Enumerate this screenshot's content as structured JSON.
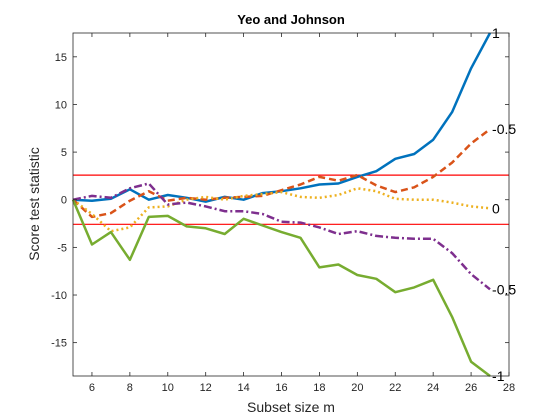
{
  "chart_data": {
    "type": "line",
    "title": "Yeo and Johnson",
    "xlabel": "Subset size m",
    "ylabel": "Score test statistic",
    "xlim": [
      5,
      28
    ],
    "ylim": [
      -18.5,
      17.5
    ],
    "xticks": [
      6,
      8,
      10,
      12,
      14,
      16,
      18,
      20,
      22,
      24,
      26,
      28
    ],
    "yticks": [
      -15,
      -10,
      -5,
      0,
      5,
      10,
      15
    ],
    "grid": false,
    "thresholds": [
      {
        "y": 2.58,
        "color": "#ff0000"
      },
      {
        "y": -2.58,
        "color": "#ff0000"
      }
    ],
    "x": [
      5,
      6,
      7,
      8,
      9,
      10,
      11,
      12,
      13,
      14,
      15,
      16,
      17,
      18,
      19,
      20,
      21,
      22,
      23,
      24,
      25,
      26,
      27
    ],
    "series": [
      {
        "label": "1",
        "color": "#0072bd",
        "style": "solid",
        "values": [
          0.0,
          -0.1,
          0.1,
          1.1,
          0.0,
          0.5,
          0.2,
          -0.2,
          0.3,
          0.0,
          0.7,
          0.9,
          1.2,
          1.6,
          1.7,
          2.4,
          3.0,
          4.3,
          4.8,
          6.3,
          9.2,
          13.8,
          17.5
        ]
      },
      {
        "label": "-0.5",
        "color": "#d95319",
        "style": "dashed",
        "values": [
          0.0,
          -1.8,
          -1.4,
          -0.1,
          0.9,
          -0.1,
          0.2,
          0.0,
          0.2,
          0.3,
          0.4,
          1.0,
          1.6,
          2.4,
          2.0,
          2.6,
          1.5,
          0.8,
          1.3,
          2.4,
          3.9,
          5.9,
          7.4
        ]
      },
      {
        "label": "0",
        "color": "#edb120",
        "style": "dotted",
        "values": [
          0.0,
          -1.5,
          -3.3,
          -2.9,
          -0.8,
          -0.7,
          0.0,
          0.3,
          0.0,
          0.4,
          0.6,
          0.8,
          0.3,
          0.2,
          0.5,
          1.2,
          0.9,
          0.1,
          0.0,
          0.0,
          -0.3,
          -0.7,
          -0.9
        ]
      },
      {
        "label": "-0.5",
        "color": "#7e2f8e",
        "style": "dashdot",
        "values": [
          0.0,
          0.4,
          0.2,
          1.2,
          1.7,
          -0.5,
          -0.3,
          -0.7,
          -1.2,
          -1.2,
          -1.5,
          -2.3,
          -2.4,
          -2.9,
          -3.6,
          -3.3,
          -3.8,
          -4.0,
          -4.1,
          -4.1,
          -5.6,
          -7.8,
          -9.4
        ]
      },
      {
        "label": "-1",
        "color": "#77ac30",
        "style": "solid",
        "values": [
          0.0,
          -4.7,
          -3.4,
          -6.3,
          -1.8,
          -1.7,
          -2.8,
          -3.0,
          -3.6,
          -2.0,
          -2.7,
          -3.4,
          -4.0,
          -7.1,
          -6.8,
          -7.9,
          -8.3,
          -9.7,
          -9.2,
          -8.4,
          -12.3,
          -17.0,
          -18.5
        ]
      }
    ]
  }
}
